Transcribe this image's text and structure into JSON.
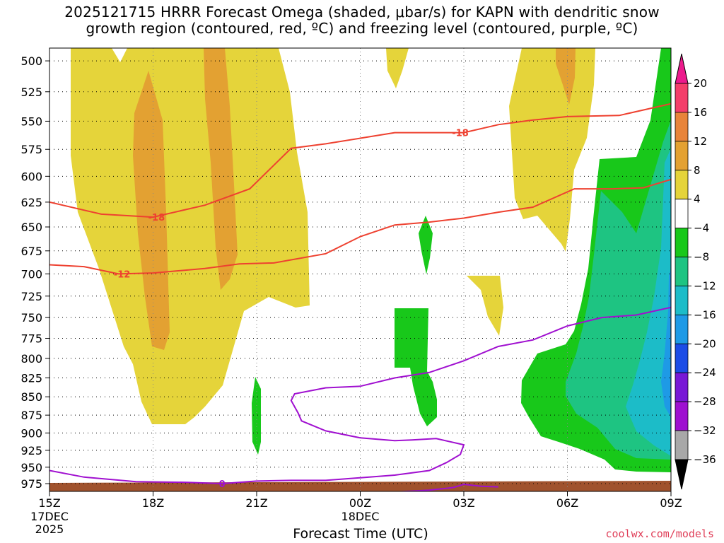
{
  "title_line1": "2025121715 HRRR Forecast Omega (shaded, μbar/s) for KAPN with dendritic snow",
  "title_line2": "growth region (contoured, red, ºC) and freezing level (contoured, purple, ºC)",
  "credit": "coolwx.com/models",
  "chart_data": {
    "type": "heatmap",
    "title": "2025121715 HRRR Forecast Omega (shaded, μbar/s) for KAPN with dendritic snow growth region (contoured, red, ºC) and freezing level (contoured, purple, ºC)",
    "xlabel": "Forecast Time (UTC)",
    "ylabel": "",
    "x_ticks": [
      {
        "hour": 0,
        "label": "15Z",
        "sub": [
          "17DEC",
          "2025"
        ]
      },
      {
        "hour": 3,
        "label": "18Z",
        "sub": []
      },
      {
        "hour": 6,
        "label": "21Z",
        "sub": []
      },
      {
        "hour": 9,
        "label": "00Z",
        "sub": [
          "18DEC"
        ]
      },
      {
        "hour": 12,
        "label": "03Z",
        "sub": []
      },
      {
        "hour": 15,
        "label": "06Z",
        "sub": []
      },
      {
        "hour": 18,
        "label": "09Z",
        "sub": []
      }
    ],
    "xlim": [
      0,
      18
    ],
    "y_ticks": [
      500,
      525,
      550,
      575,
      600,
      625,
      650,
      675,
      700,
      725,
      750,
      775,
      800,
      825,
      850,
      875,
      900,
      925,
      950,
      975
    ],
    "ylim_hPa": [
      490,
      987
    ],
    "y_scale": "log-pressure",
    "grid": true,
    "colorbar": {
      "labels": [
        "20",
        "16",
        "12",
        "8",
        "4",
        "−4",
        "−8",
        "−12",
        "−16",
        "−20",
        "−24",
        "−28",
        "−32",
        "−36"
      ],
      "colors": [
        "#f43e6a",
        "#e8843a",
        "#e3a132",
        "#e5d43a",
        "#ffffff",
        "#18c81a",
        "#1ec482",
        "#1cbcc8",
        "#1e9ae6",
        "#1c4ce6",
        "#7818d6",
        "#9e10d0",
        "#a8a8a8"
      ],
      "top_arrow_color": "#ec1a8c",
      "bottom_arrow_color": "#000000"
    },
    "series": [
      {
        "name": "-18",
        "color": "#ee4130",
        "points": [
          [
            0,
            625
          ],
          [
            1.5,
            637
          ],
          [
            3,
            640
          ],
          [
            4.5,
            628
          ],
          [
            5.8,
            612
          ],
          [
            7,
            574
          ],
          [
            8,
            570
          ],
          [
            9,
            565
          ],
          [
            10,
            560
          ],
          [
            12,
            560
          ],
          [
            13,
            553
          ],
          [
            14,
            549
          ],
          [
            15,
            546
          ],
          [
            16.5,
            545
          ],
          [
            18,
            535
          ]
        ]
      },
      {
        "name": "-12",
        "color": "#ee4130",
        "points": [
          [
            0,
            690
          ],
          [
            1,
            692
          ],
          [
            2,
            700
          ],
          [
            3,
            699
          ],
          [
            4.5,
            694
          ],
          [
            5.5,
            689
          ],
          [
            6.5,
            688
          ],
          [
            8,
            678
          ],
          [
            9,
            660
          ],
          [
            10,
            648
          ],
          [
            11,
            645
          ],
          [
            12,
            641
          ],
          [
            13,
            635
          ],
          [
            14,
            630
          ],
          [
            15.2,
            612
          ],
          [
            16.3,
            612
          ],
          [
            17.2,
            611
          ],
          [
            18,
            603
          ]
        ]
      },
      {
        "name": "0",
        "color": "#a010d0",
        "points": [
          [
            0,
            955
          ],
          [
            1,
            965
          ],
          [
            2.5,
            972
          ],
          [
            4,
            973
          ],
          [
            5,
            975
          ],
          [
            6,
            971
          ],
          [
            7,
            970
          ],
          [
            8,
            970
          ],
          [
            9,
            966
          ],
          [
            10,
            962
          ],
          [
            11,
            955
          ],
          [
            11.5,
            943
          ],
          [
            11.9,
            931
          ],
          [
            12,
            917
          ],
          [
            11.2,
            908
          ],
          [
            10.5,
            910
          ],
          [
            10,
            911
          ],
          [
            9,
            907
          ],
          [
            8,
            897
          ],
          [
            7.3,
            883
          ],
          [
            7.2,
            872
          ],
          [
            7,
            855
          ],
          [
            7.1,
            846
          ],
          [
            8,
            838
          ],
          [
            9,
            836
          ],
          [
            10,
            825
          ],
          [
            11,
            818
          ],
          [
            12,
            803
          ],
          [
            13,
            785
          ],
          [
            14,
            777
          ],
          [
            15,
            760
          ],
          [
            16,
            750
          ],
          [
            17,
            747
          ],
          [
            18,
            738
          ]
        ]
      },
      {
        "name": "0",
        "color": "#a010d0",
        "points": [
          [
            9,
            990
          ],
          [
            10,
            988
          ],
          [
            11,
            985
          ],
          [
            11.7,
            981
          ],
          [
            12,
            976
          ],
          [
            12.5,
            979
          ],
          [
            13,
            980
          ]
        ]
      }
    ],
    "contour_labels": [
      {
        "text": "-18",
        "hour": 11.9,
        "hPa": 560,
        "color": "#ee4130"
      },
      {
        "text": "-18",
        "hour": 3.1,
        "hPa": 640,
        "color": "#ee4130"
      },
      {
        "text": "-12",
        "hour": 2.1,
        "hPa": 700,
        "color": "#ee4130"
      },
      {
        "text": "0",
        "hour": 5.0,
        "hPa": 975,
        "color": "#a010d0"
      }
    ]
  }
}
